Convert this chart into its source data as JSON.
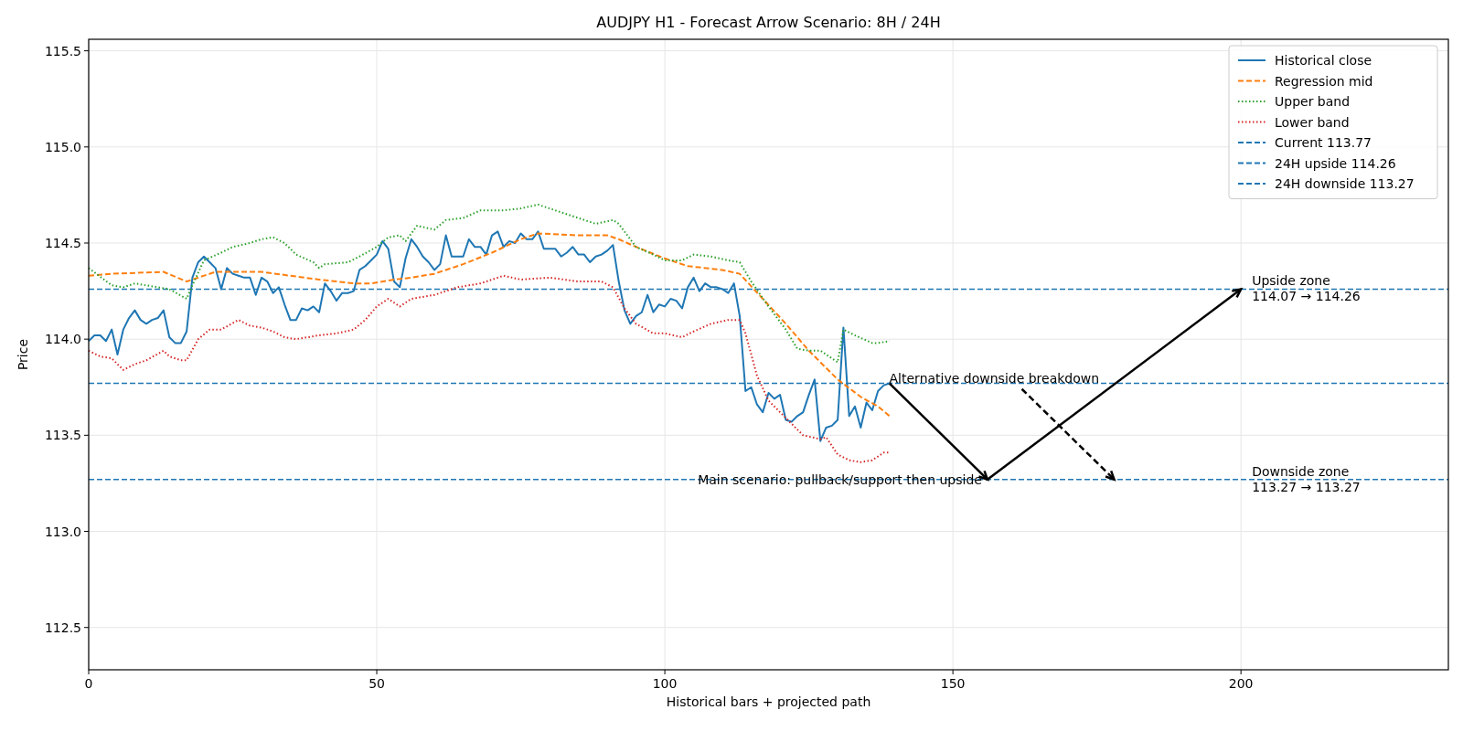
{
  "chart_data": {
    "type": "line",
    "title": "AUDJPY H1 - Forecast Arrow Scenario: 8H / 24H",
    "xlabel": "Historical bars + projected path",
    "ylabel": "Price",
    "xlim": [
      0,
      236
    ],
    "ylim": [
      112.28,
      115.56
    ],
    "xticks": [
      0,
      50,
      100,
      150,
      200
    ],
    "yticks": [
      {
        "value": 112.5,
        "label": "112.5"
      },
      {
        "value": 113,
        "label": "113.0"
      },
      {
        "value": 113.5,
        "label": "113.5"
      },
      {
        "value": 114,
        "label": "114.0"
      },
      {
        "value": 114.5,
        "label": "114.5"
      },
      {
        "value": 115,
        "label": "115.0"
      },
      {
        "value": 115.5,
        "label": "115.5"
      }
    ],
    "grid": true,
    "legend": "top right",
    "series": [
      {
        "name": "Historical close",
        "color": "#1f77b4",
        "line_style": "solid",
        "x": [
          0,
          1,
          2,
          3,
          4,
          5,
          6,
          7,
          8,
          9,
          10,
          11,
          12,
          13,
          14,
          15,
          16,
          17,
          18,
          19,
          20,
          21,
          22,
          23,
          24,
          25,
          26,
          27,
          28,
          29,
          30,
          31,
          32,
          33,
          34,
          35,
          36,
          37,
          38,
          39,
          40,
          41,
          42,
          43,
          44,
          45,
          46,
          47,
          48,
          49,
          50,
          51,
          52,
          53,
          54,
          55,
          56,
          57,
          58,
          59,
          60,
          61,
          62,
          63,
          64,
          65,
          66,
          67,
          68,
          69,
          70,
          71,
          72,
          73,
          74,
          75,
          76,
          77,
          78,
          79,
          80,
          81,
          82,
          83,
          84,
          85,
          86,
          87,
          88,
          89,
          90,
          91,
          92,
          93,
          94,
          95,
          96,
          97,
          98,
          99,
          100,
          101,
          102,
          103,
          104,
          105,
          106,
          107,
          108,
          109,
          110,
          111,
          112,
          113,
          114,
          115,
          116,
          117,
          118,
          119,
          120,
          121,
          122,
          123,
          124,
          125,
          126,
          127,
          128,
          129,
          130,
          131,
          132,
          133,
          134,
          135,
          136,
          137,
          138,
          139
        ],
        "values": [
          113.99,
          114.02,
          114.02,
          113.99,
          114.05,
          113.92,
          114.05,
          114.11,
          114.15,
          114.1,
          114.08,
          114.1,
          114.11,
          114.15,
          114.01,
          113.98,
          113.98,
          114.04,
          114.32,
          114.4,
          114.43,
          114.4,
          114.37,
          114.26,
          114.37,
          114.34,
          114.33,
          114.32,
          114.32,
          114.23,
          114.32,
          114.3,
          114.24,
          114.27,
          114.18,
          114.1,
          114.1,
          114.16,
          114.15,
          114.17,
          114.14,
          114.29,
          114.25,
          114.2,
          114.24,
          114.24,
          114.25,
          114.36,
          114.38,
          114.41,
          114.44,
          114.51,
          114.47,
          114.3,
          114.27,
          114.42,
          114.52,
          114.48,
          114.43,
          114.4,
          114.36,
          114.39,
          114.54,
          114.43,
          114.43,
          114.43,
          114.52,
          114.48,
          114.48,
          114.44,
          114.54,
          114.56,
          114.48,
          114.51,
          114.5,
          114.55,
          114.52,
          114.52,
          114.56,
          114.47,
          114.47,
          114.47,
          114.43,
          114.45,
          114.48,
          114.44,
          114.44,
          114.4,
          114.43,
          114.44,
          114.46,
          114.49,
          114.3,
          114.15,
          114.08,
          114.12,
          114.14,
          114.23,
          114.14,
          114.18,
          114.17,
          114.21,
          114.2,
          114.16,
          114.27,
          114.32,
          114.25,
          114.29,
          114.27,
          114.27,
          114.26,
          114.24,
          114.29,
          114.12,
          113.73,
          113.75,
          113.66,
          113.62,
          113.72,
          113.69,
          113.71,
          113.58,
          113.57,
          113.6,
          113.62,
          113.71,
          113.79,
          113.47,
          113.54,
          113.55,
          113.58,
          114.06,
          113.6,
          113.65,
          113.54,
          113.67,
          113.63,
          113.73,
          113.76,
          113.77
        ]
      },
      {
        "name": "Regression mid",
        "color": "#ff7f0e",
        "line_style": "dashed",
        "x": [
          0,
          4,
          13,
          17,
          22,
          27,
          30,
          35,
          40,
          46,
          49,
          53,
          56,
          60,
          65,
          70,
          75,
          78,
          85,
          90,
          92,
          95,
          100,
          104,
          110,
          113,
          117,
          121,
          125,
          130,
          134,
          137,
          139
        ],
        "values": [
          114.33,
          114.34,
          114.35,
          114.3,
          114.35,
          114.35,
          114.35,
          114.33,
          114.31,
          114.29,
          114.29,
          114.31,
          114.32,
          114.34,
          114.39,
          114.45,
          114.52,
          114.55,
          114.54,
          114.54,
          114.52,
          114.48,
          114.42,
          114.38,
          114.36,
          114.34,
          114.21,
          114.08,
          113.94,
          113.79,
          113.7,
          113.65,
          113.6
        ]
      },
      {
        "name": "Upper band",
        "color": "#2ca02c",
        "line_style": "dotted",
        "x": [
          0,
          4,
          6,
          8,
          10,
          14,
          17,
          18,
          20,
          23,
          25,
          28,
          30,
          32,
          34,
          36,
          39,
          40,
          41,
          45,
          47,
          50,
          52,
          54,
          55,
          57,
          60,
          62,
          65,
          68,
          72,
          75,
          78,
          82,
          85,
          88,
          91,
          92,
          95,
          98,
          100,
          103,
          105,
          108,
          111,
          113,
          115,
          118,
          121,
          123,
          125,
          127,
          130,
          131,
          133,
          136,
          137,
          139
        ],
        "values": [
          114.37,
          114.28,
          114.27,
          114.29,
          114.28,
          114.26,
          114.21,
          114.28,
          114.41,
          114.45,
          114.48,
          114.5,
          114.52,
          114.53,
          114.5,
          114.44,
          114.4,
          114.37,
          114.39,
          114.4,
          114.43,
          114.48,
          114.53,
          114.54,
          114.51,
          114.59,
          114.57,
          114.62,
          114.63,
          114.67,
          114.67,
          114.68,
          114.7,
          114.66,
          114.63,
          114.6,
          114.62,
          114.6,
          114.48,
          114.44,
          114.41,
          114.41,
          114.44,
          114.43,
          114.41,
          114.4,
          114.3,
          114.17,
          114.05,
          113.95,
          113.94,
          113.94,
          113.88,
          114.05,
          114.02,
          113.98,
          113.98,
          113.99
        ]
      },
      {
        "name": "Lower band",
        "color": "#d62728",
        "line_style": "dotted",
        "x": [
          0,
          2,
          4,
          6,
          8,
          10,
          13,
          14,
          16,
          17,
          19,
          21,
          23,
          26,
          28,
          30,
          32,
          34,
          36,
          38,
          40,
          43,
          46,
          48,
          50,
          52,
          54,
          56,
          60,
          64,
          68,
          72,
          75,
          80,
          85,
          89,
          91,
          93,
          95,
          98,
          100,
          103,
          105,
          108,
          111,
          113,
          114,
          116,
          118,
          121,
          124,
          127,
          128,
          130,
          132,
          134,
          136,
          138,
          139
        ],
        "values": [
          113.94,
          113.91,
          113.9,
          113.84,
          113.87,
          113.89,
          113.94,
          113.91,
          113.89,
          113.89,
          114,
          114.05,
          114.05,
          114.1,
          114.07,
          114.06,
          114.04,
          114.01,
          114,
          114.01,
          114.02,
          114.03,
          114.05,
          114.1,
          114.17,
          114.21,
          114.17,
          114.21,
          114.23,
          114.27,
          114.29,
          114.33,
          114.31,
          114.32,
          114.3,
          114.3,
          114.27,
          114.16,
          114.08,
          114.03,
          114.03,
          114.01,
          114.04,
          114.08,
          114.1,
          114.1,
          114.03,
          113.81,
          113.68,
          113.59,
          113.5,
          113.48,
          113.49,
          113.4,
          113.37,
          113.36,
          113.37,
          113.41,
          113.41
        ]
      }
    ],
    "ref_lines": [
      {
        "axis": "y",
        "value": 113.77,
        "label": "Current 113.77",
        "color": "#1f77b4",
        "line_style": "dashed"
      },
      {
        "axis": "y",
        "value": 114.26,
        "label": "24H upside 114.26",
        "color": "#1f77b4",
        "line_style": "dashed"
      },
      {
        "axis": "y",
        "value": 113.27,
        "label": "24H downside 113.27",
        "color": "#1f77b4",
        "line_style": "dashed"
      }
    ],
    "annotations": [
      {
        "text": "Main scenario: pullback/support then upside",
        "x": 156,
        "y": 113.27
      },
      {
        "text": "Alternative downside breakdown",
        "x": 178,
        "y": 113.27
      },
      {
        "text": "Upside zone\n114.07 → 114.26",
        "x": 200,
        "y": 114.26
      },
      {
        "text": "Downside zone\n113.27 → 113.27",
        "x": 200,
        "y": 113.27
      }
    ]
  }
}
